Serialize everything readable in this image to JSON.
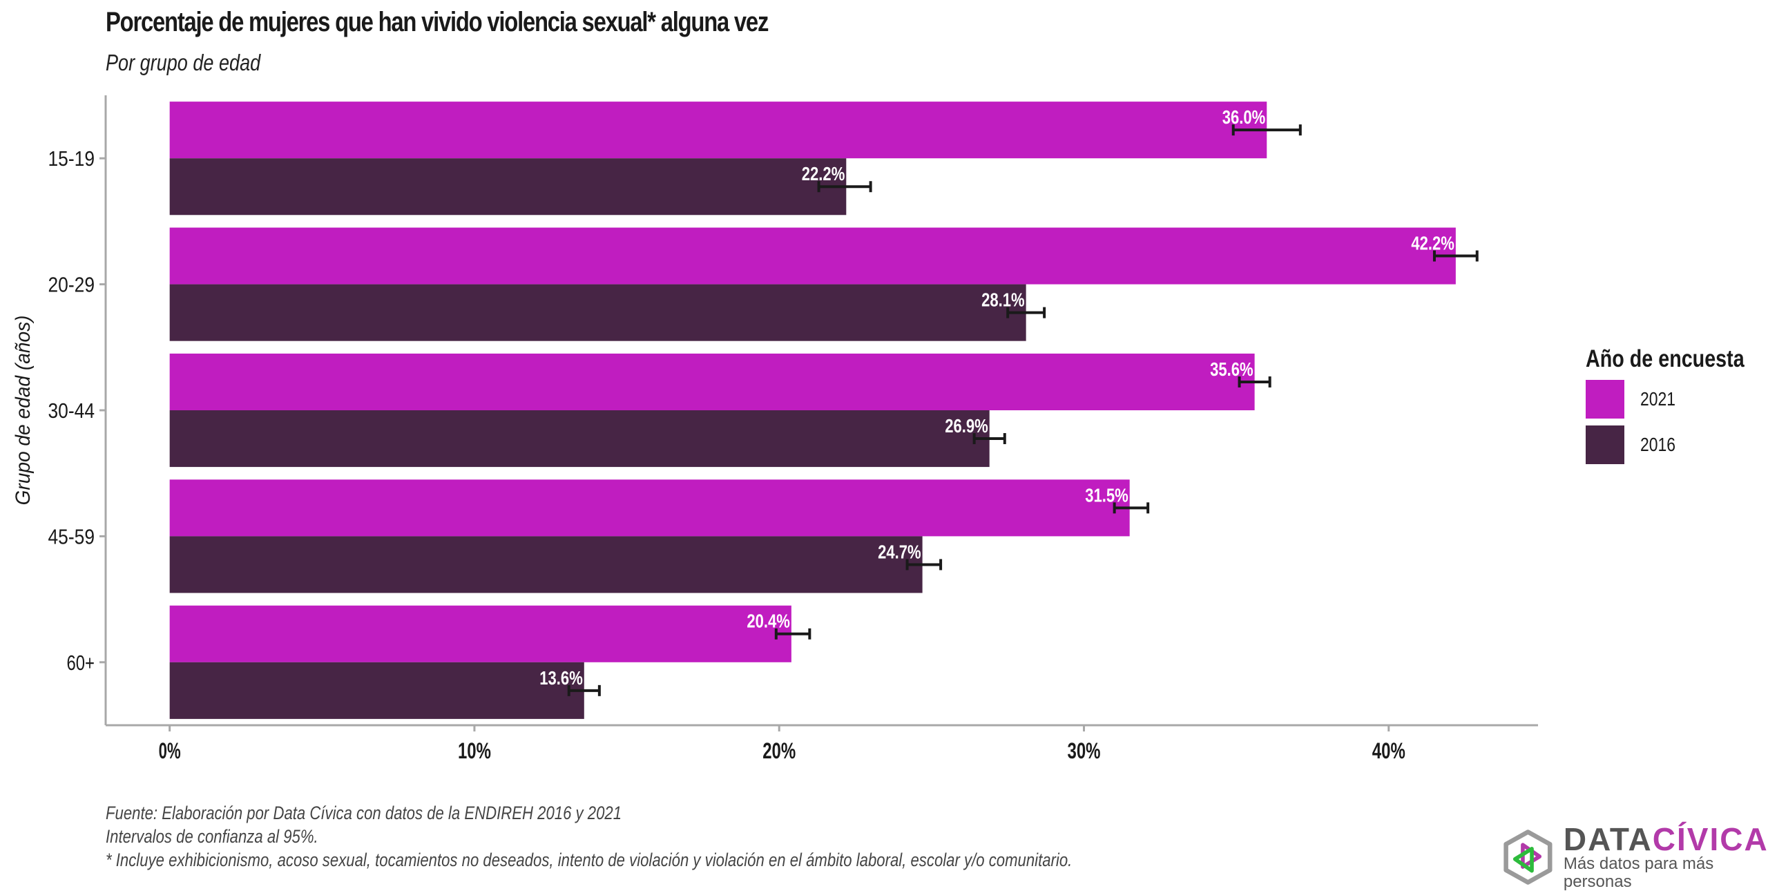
{
  "header": {
    "title": "Porcentaje de mujeres que han vivido violencia sexual* alguna vez",
    "subtitle": "Por grupo de edad"
  },
  "legend": {
    "title": "Año de encuesta",
    "items": [
      {
        "label": "2021",
        "color": "#c01dc0"
      },
      {
        "label": "2016",
        "color": "#472545"
      }
    ]
  },
  "caption": {
    "lines": [
      "Fuente: Elaboración por Data Cívica con datos de la ENDIREH 2016 y 2021",
      "Intervalos de confianza al 95%.",
      "* Incluye exhibicionismo, acoso sexual, tocamientos no deseados, intento de violación y violación en el ámbito laboral, escolar y/o comunitario."
    ]
  },
  "logo": {
    "name_part1": "DATA",
    "name_part2": "CÍVICA",
    "tagline": "Más datos para más personas",
    "colors": {
      "gray": "#555555",
      "magenta": "#b23aa9",
      "green": "#2dbb3c",
      "hex": "#9a9a9a"
    }
  },
  "chart_data": {
    "type": "bar",
    "orientation": "horizontal",
    "title": "Porcentaje de mujeres que han vivido violencia sexual* alguna vez",
    "subtitle": "Por grupo de edad",
    "xlabel": "",
    "ylabel": "Grupo de edad (años)",
    "categories": [
      "15-19",
      "20-29",
      "30-44",
      "45-59",
      "60+"
    ],
    "xlim": [
      -2.1,
      44.9
    ],
    "xticks": [
      0,
      10,
      20,
      30,
      40
    ],
    "xtick_labels": [
      "0%",
      "10%",
      "20%",
      "30%",
      "40%"
    ],
    "grid": false,
    "legend_position": "right",
    "series": [
      {
        "name": "2021",
        "color": "#c01dc0",
        "values": [
          36.0,
          42.2,
          35.6,
          31.5,
          20.4
        ],
        "labels": [
          "36.0%",
          "42.2%",
          "35.6%",
          "31.5%",
          "20.4%"
        ],
        "ci_low": [
          34.9,
          41.5,
          35.1,
          31.0,
          19.9
        ],
        "ci_high": [
          37.1,
          42.9,
          36.1,
          32.1,
          21.0
        ]
      },
      {
        "name": "2016",
        "color": "#472545",
        "values": [
          22.2,
          28.1,
          26.9,
          24.7,
          13.6
        ],
        "labels": [
          "22.2%",
          "28.1%",
          "26.9%",
          "24.7%",
          "13.6%"
        ],
        "ci_low": [
          21.3,
          27.5,
          26.4,
          24.2,
          13.1
        ],
        "ci_high": [
          23.0,
          28.7,
          27.4,
          25.3,
          14.1
        ]
      }
    ]
  }
}
